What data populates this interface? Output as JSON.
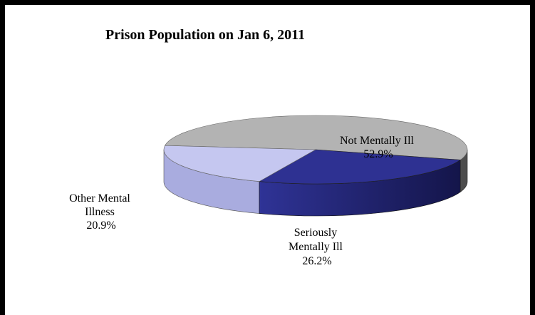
{
  "chart_data": {
    "type": "pie",
    "title": "Prison Population on Jan 6, 2011",
    "slices": [
      {
        "label": "Not Mentally Ill",
        "value": 52.9,
        "display": "52.9%",
        "color": "#b3b3b3",
        "side_color": "#4d4d4d"
      },
      {
        "label": "Seriously Mentally Ill",
        "value": 26.2,
        "display": "26.2%",
        "color": "#2e3192",
        "side_color": "#1c1d63"
      },
      {
        "label": "Other Mental Illness",
        "value": 20.9,
        "display": "20.9%",
        "color": "#c5c7f0",
        "side_color": "#a9acdf"
      }
    ],
    "label_lines": {
      "not_mentally_ill": [
        "Not Mentally Ill",
        "52.9%"
      ],
      "seriously_mentally_ill": [
        "Seriously",
        "Mentally Ill",
        "26.2%"
      ],
      "other_mental_illness": [
        "Other Mental",
        "Illness",
        "20.9%"
      ]
    }
  }
}
